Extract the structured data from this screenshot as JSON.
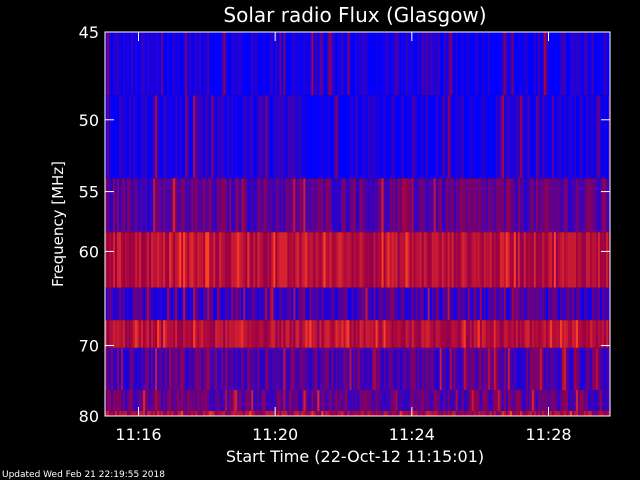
{
  "chart_data": {
    "type": "heatmap",
    "title": "Solar radio Flux (Glasgow)",
    "xlabel": "Start Time (22-Oct-12 11:15:01)",
    "ylabel": "Frequency [MHz]",
    "x_start_minutes": 15.02,
    "x_end_minutes": 29.8,
    "xticks": [
      {
        "minute": 16,
        "label": "11:16"
      },
      {
        "minute": 20,
        "label": "11:20"
      },
      {
        "minute": 24,
        "label": "11:24"
      },
      {
        "minute": 28,
        "label": "11:28"
      }
    ],
    "ylim": [
      45,
      80
    ],
    "yticks": [
      45,
      50,
      55,
      60,
      70,
      80
    ],
    "bands": [
      {
        "from": 45,
        "to": 48.5,
        "level": 0.04
      },
      {
        "from": 48.5,
        "to": 54,
        "level": 0.06
      },
      {
        "from": 54,
        "to": 58.3,
        "level": 0.28
      },
      {
        "from": 58.3,
        "to": 63.5,
        "level": 0.62
      },
      {
        "from": 63.5,
        "to": 67,
        "level": 0.18
      },
      {
        "from": 67,
        "to": 70.3,
        "level": 0.6
      },
      {
        "from": 70.3,
        "to": 76,
        "level": 0.25
      },
      {
        "from": 76,
        "to": 79.2,
        "level": 0.3
      },
      {
        "from": 79.2,
        "to": 80,
        "level": 0.55
      }
    ],
    "colors": {
      "low": "#0000ff",
      "mid": "#a00040",
      "high": "#ff4020"
    }
  },
  "footer": "Updated Wed Feb 21 22:19:55 2018"
}
